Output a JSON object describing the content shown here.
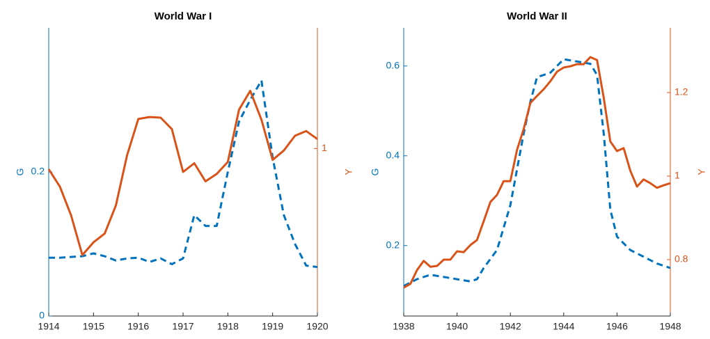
{
  "chart_data": [
    {
      "type": "line",
      "title": "World War I",
      "ylabel": "G",
      "y2label": "Y",
      "xlim": [
        1914,
        1920
      ],
      "xticks": [
        1914,
        1915,
        1916,
        1917,
        1918,
        1919,
        1920
      ],
      "ylim": [
        0,
        0.4
      ],
      "yticks": [
        0,
        0.2
      ],
      "y2lim": [
        0.75,
        1.18
      ],
      "y2ticks": [
        1
      ],
      "series": [
        {
          "name": "G",
          "color": "#0072BD",
          "dashed": true,
          "x": [
            1914,
            1914.25,
            1914.5,
            1914.75,
            1915,
            1915.25,
            1915.5,
            1915.75,
            1916,
            1916.25,
            1916.5,
            1916.75,
            1917,
            1917.25,
            1917.5,
            1917.75,
            1918,
            1918.25,
            1918.5,
            1918.75,
            1919,
            1919.25,
            1919.5,
            1919.75,
            1920
          ],
          "values": [
            0.081,
            0.081,
            0.082,
            0.083,
            0.087,
            0.083,
            0.077,
            0.08,
            0.081,
            0.075,
            0.08,
            0.072,
            0.08,
            0.14,
            0.125,
            0.125,
            0.2,
            0.27,
            0.3,
            0.327,
            0.22,
            0.14,
            0.1,
            0.07,
            0.068
          ]
        },
        {
          "name": "Y",
          "color": "#D95319",
          "axis": "y2",
          "x": [
            1914,
            1914.25,
            1914.5,
            1914.75,
            1915,
            1915.25,
            1915.5,
            1915.75,
            1916,
            1916.25,
            1916.5,
            1916.75,
            1917,
            1917.25,
            1917.5,
            1917.75,
            1918,
            1918.25,
            1918.5,
            1918.75,
            1919,
            1919.25,
            1919.5,
            1919.75,
            1920
          ],
          "values": [
            0.969,
            0.943,
            0.9,
            0.841,
            0.86,
            0.873,
            0.915,
            0.99,
            1.044,
            1.047,
            1.046,
            1.029,
            0.965,
            0.978,
            0.951,
            0.962,
            0.98,
            1.058,
            1.086,
            1.043,
            0.983,
            0.997,
            1.019,
            1.026,
            1.014
          ]
        }
      ]
    },
    {
      "type": "line",
      "title": "World War II",
      "ylabel": "G",
      "y2label": "Y",
      "xlim": [
        1938,
        1948
      ],
      "xticks": [
        1938,
        1940,
        1942,
        1944,
        1946,
        1948
      ],
      "ylim": [
        0.043,
        0.685
      ],
      "yticks": [
        0.2,
        0.4,
        0.6
      ],
      "y2lim": [
        0.665,
        1.355
      ],
      "y2ticks": [
        0.8,
        1,
        1.2
      ],
      "series": [
        {
          "name": "G",
          "color": "#0072BD",
          "dashed": true,
          "x": [
            1938,
            1938.5,
            1939,
            1939.5,
            1940,
            1940.5,
            1940.75,
            1941,
            1941.5,
            1942,
            1942.5,
            1942.75,
            1943,
            1943.5,
            1944,
            1944.5,
            1945,
            1945.25,
            1945.5,
            1945.75,
            1946,
            1946.5,
            1947,
            1947.5,
            1948
          ],
          "values": [
            0.11,
            0.125,
            0.135,
            0.13,
            0.125,
            0.12,
            0.125,
            0.15,
            0.19,
            0.29,
            0.45,
            0.52,
            0.575,
            0.585,
            0.615,
            0.61,
            0.605,
            0.58,
            0.45,
            0.28,
            0.22,
            0.19,
            0.175,
            0.16,
            0.15
          ]
        },
        {
          "name": "Y",
          "color": "#D95319",
          "axis": "y2",
          "x": [
            1938,
            1938.25,
            1938.5,
            1938.75,
            1939,
            1939.25,
            1939.5,
            1939.75,
            1940,
            1940.25,
            1940.5,
            1940.75,
            1941,
            1941.25,
            1941.5,
            1941.75,
            1942,
            1942.25,
            1942.5,
            1942.75,
            1943,
            1943.25,
            1943.5,
            1943.75,
            1944,
            1944.25,
            1944.5,
            1944.75,
            1945,
            1945.25,
            1945.5,
            1945.75,
            1946,
            1946.25,
            1946.5,
            1946.75,
            1947,
            1947.25,
            1947.5,
            1947.75,
            1948
          ],
          "values": [
            0.733,
            0.742,
            0.775,
            0.797,
            0.783,
            0.785,
            0.8,
            0.8,
            0.82,
            0.818,
            0.835,
            0.847,
            0.892,
            0.938,
            0.955,
            0.988,
            0.988,
            1.063,
            1.113,
            1.175,
            1.192,
            1.208,
            1.227,
            1.25,
            1.26,
            1.263,
            1.268,
            1.268,
            1.285,
            1.278,
            1.188,
            1.083,
            1.06,
            1.067,
            1.013,
            0.975,
            0.992,
            0.983,
            0.972,
            0.978,
            0.983
          ]
        }
      ]
    }
  ]
}
